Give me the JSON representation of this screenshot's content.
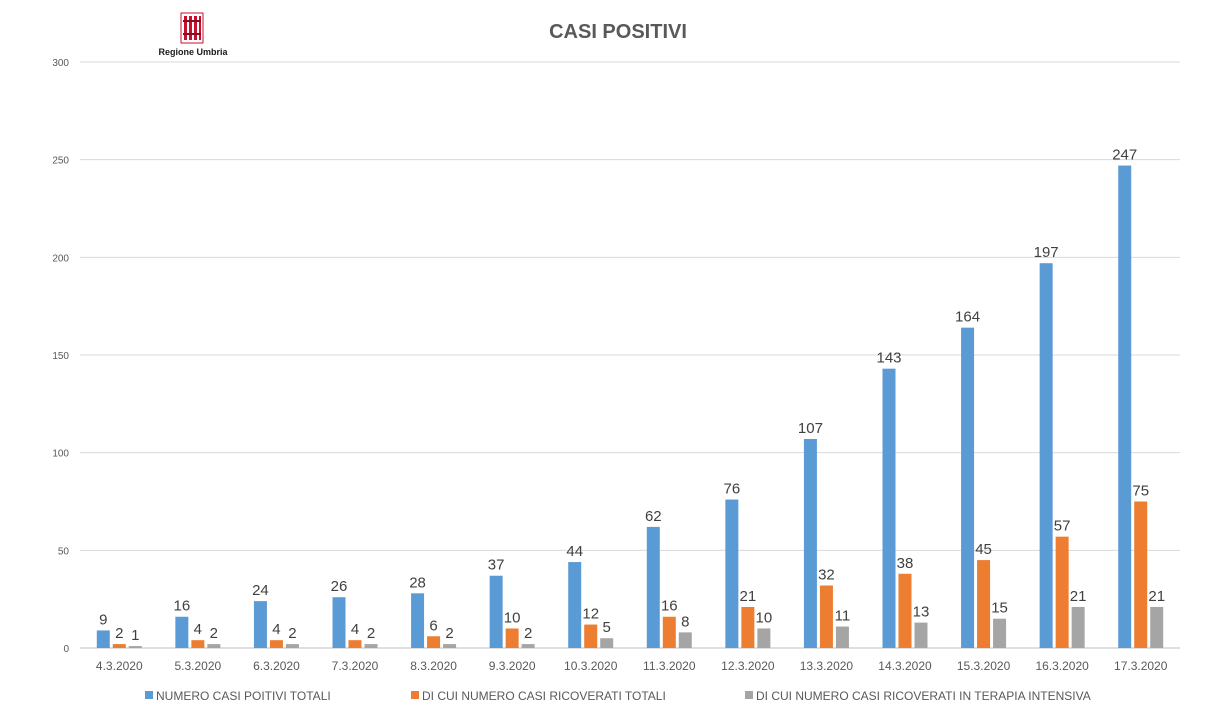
{
  "logo": {
    "text": "Regione Umbria",
    "icon": "regione-umbria-emblem-icon",
    "color": "#c8102e"
  },
  "chart_data": {
    "type": "bar",
    "title": "CASI POSITIVI",
    "xlabel": "",
    "ylabel": "",
    "ylim": [
      0,
      300
    ],
    "yticks": [
      0,
      50,
      100,
      150,
      200,
      250,
      300
    ],
    "grid": true,
    "legend_position": "bottom",
    "categories": [
      "4.3.2020",
      "5.3.2020",
      "6.3.2020",
      "7.3.2020",
      "8.3.2020",
      "9.3.2020",
      "10.3.2020",
      "11.3.2020",
      "12.3.2020",
      "13.3.2020",
      "14.3.2020",
      "15.3.2020",
      "16.3.2020",
      "17.3.2020"
    ],
    "series": [
      {
        "name": "NUMERO CASI POITIVI TOTALI",
        "color": "#5b9bd5",
        "values": [
          9,
          16,
          24,
          26,
          28,
          37,
          44,
          62,
          76,
          107,
          143,
          164,
          197,
          247
        ]
      },
      {
        "name": "DI CUI NUMERO CASI RICOVERATI TOTALI",
        "color": "#ed7d31",
        "values": [
          2,
          4,
          4,
          4,
          6,
          10,
          12,
          16,
          21,
          32,
          38,
          45,
          57,
          75
        ]
      },
      {
        "name": "DI CUI NUMERO CASI RICOVERATI IN TERAPIA INTENSIVA",
        "color": "#a5a5a5",
        "values": [
          1,
          2,
          2,
          2,
          2,
          2,
          5,
          8,
          10,
          11,
          13,
          15,
          21,
          21
        ]
      }
    ]
  }
}
